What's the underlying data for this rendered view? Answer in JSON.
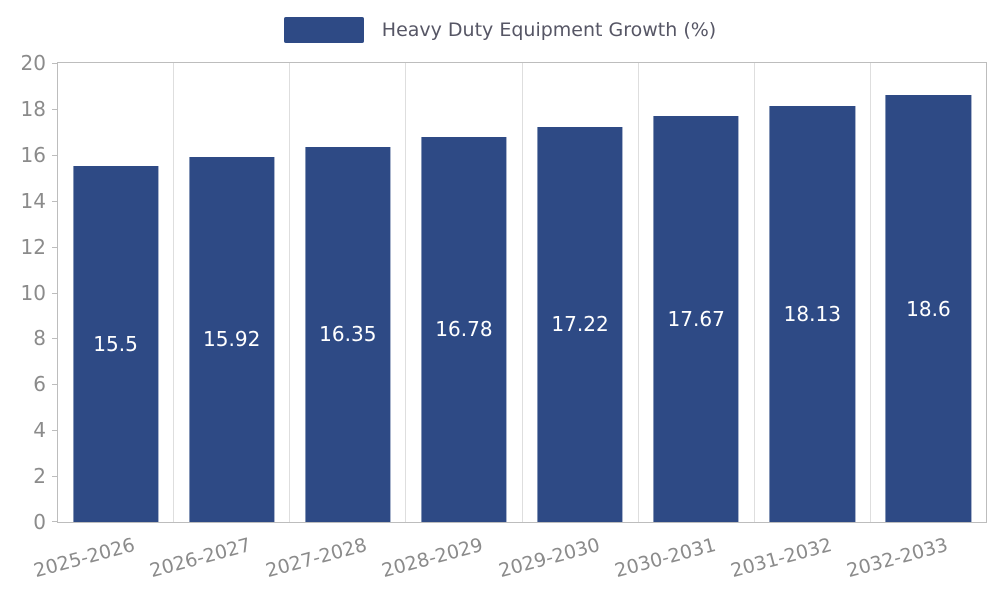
{
  "legend": {
    "label": "Heavy Duty Equipment Growth (%)"
  },
  "chart_data": {
    "type": "bar",
    "title": "Heavy Duty Equipment Growth (%)",
    "categories": [
      "2025-2026",
      "2026-2027",
      "2027-2028",
      "2028-2029",
      "2029-2030",
      "2030-2031",
      "2031-2032",
      "2032-2033"
    ],
    "values": [
      15.5,
      15.92,
      16.35,
      16.78,
      17.22,
      17.67,
      18.13,
      18.6
    ],
    "value_labels": [
      "15.5",
      "15.92",
      "16.35",
      "16.78",
      "17.22",
      "17.67",
      "18.13",
      "18.6"
    ],
    "xlabel": "",
    "ylabel": "",
    "ylim": [
      0,
      20
    ],
    "ytick_step": 2,
    "ytick_labels": [
      "0",
      "2",
      "4",
      "6",
      "8",
      "10",
      "12",
      "14",
      "16",
      "18",
      "20"
    ],
    "grid": "vertical",
    "legend_position": "top",
    "colors": {
      "bar": "#2e4a85",
      "bar_value_label": "#ffffff",
      "axis_text": "#8b8b8b",
      "legend_text": "#565665",
      "axis_line": "#bdbdbd",
      "gridline": "#dedede",
      "background": "#ffffff"
    }
  }
}
